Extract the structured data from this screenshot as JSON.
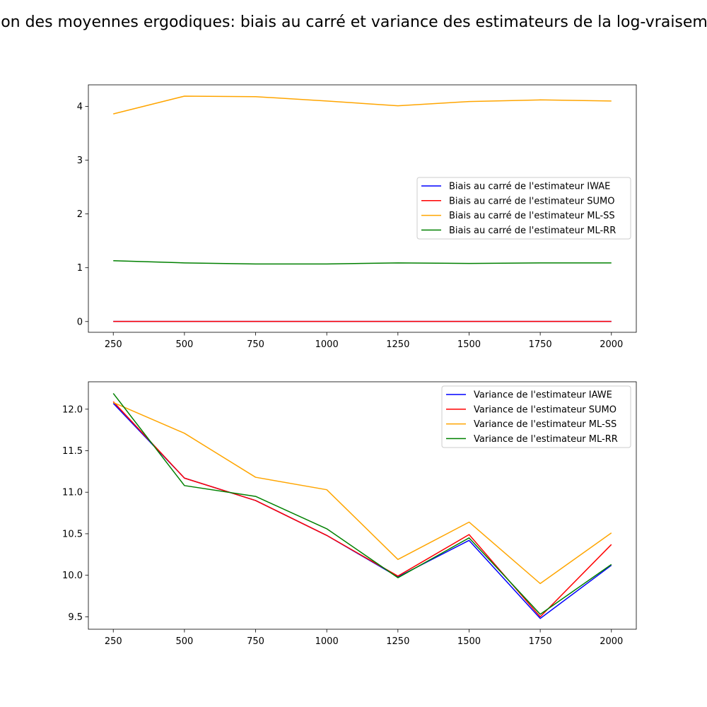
{
  "title": "Évolution des moyennes ergodiques: biais au carré et variance des estimateurs de la log-vraisemblance",
  "chart_data": [
    {
      "type": "line",
      "title": "",
      "xlabel": "",
      "ylabel": "",
      "x": [
        250,
        500,
        750,
        1000,
        1250,
        1500,
        1750,
        2000
      ],
      "xticks": [
        250,
        500,
        750,
        1000,
        1250,
        1500,
        1750,
        2000
      ],
      "xlim": [
        162.5,
        2087.5
      ],
      "ylim": [
        -0.2,
        4.4
      ],
      "yticks": [
        0,
        1,
        2,
        3,
        4
      ],
      "ytick_labels": [
        "0",
        "1",
        "2",
        "3",
        "4"
      ],
      "grid": false,
      "legend_position": "center-right",
      "series": [
        {
          "name": "Biais au carré de l'estimateur IWAE",
          "color": "#0000ff",
          "values": [
            0.002,
            0.002,
            0.002,
            0.002,
            0.002,
            0.002,
            0.002,
            0.002
          ]
        },
        {
          "name": "Biais au carré de l'estimateur SUMO",
          "color": "#ff0000",
          "values": [
            0.002,
            0.002,
            0.002,
            0.002,
            0.002,
            0.002,
            0.002,
            0.002
          ]
        },
        {
          "name": "Biais au carré de l'estimateur ML-SS",
          "color": "#ffa500",
          "values": [
            3.86,
            4.19,
            4.18,
            4.1,
            4.01,
            4.09,
            4.12,
            4.1
          ]
        },
        {
          "name": "Biais au carré de l'estimateur ML-RR",
          "color": "#008000",
          "values": [
            1.13,
            1.09,
            1.07,
            1.07,
            1.09,
            1.08,
            1.09,
            1.09
          ]
        }
      ]
    },
    {
      "type": "line",
      "title": "",
      "xlabel": "",
      "ylabel": "",
      "x": [
        250,
        500,
        750,
        1000,
        1250,
        1500,
        1750,
        2000
      ],
      "xticks": [
        250,
        500,
        750,
        1000,
        1250,
        1500,
        1750,
        2000
      ],
      "xlim": [
        162.5,
        2087.5
      ],
      "ylim": [
        9.35,
        12.33
      ],
      "yticks": [
        9.5,
        10.0,
        10.5,
        11.0,
        11.5,
        12.0
      ],
      "ytick_labels": [
        "9.5",
        "10.0",
        "10.5",
        "11.0",
        "11.5",
        "12.0"
      ],
      "grid": false,
      "legend_position": "upper-right",
      "series": [
        {
          "name": "Variance de l'estimateur IAWE",
          "color": "#0000ff",
          "values": [
            12.07,
            11.17,
            10.9,
            10.48,
            9.98,
            10.42,
            9.48,
            10.12
          ]
        },
        {
          "name": "Variance de l'estimateur SUMO",
          "color": "#ff0000",
          "values": [
            12.09,
            11.17,
            10.9,
            10.48,
            9.99,
            10.49,
            9.5,
            10.37
          ]
        },
        {
          "name": "Variance de l'estimateur ML-SS",
          "color": "#ffa500",
          "values": [
            12.08,
            11.71,
            11.18,
            11.03,
            10.19,
            10.64,
            9.9,
            10.51
          ]
        },
        {
          "name": "Variance de l'estimateur ML-RR",
          "color": "#008000",
          "values": [
            12.19,
            11.08,
            10.95,
            10.56,
            9.97,
            10.45,
            9.53,
            10.13
          ]
        }
      ]
    }
  ]
}
